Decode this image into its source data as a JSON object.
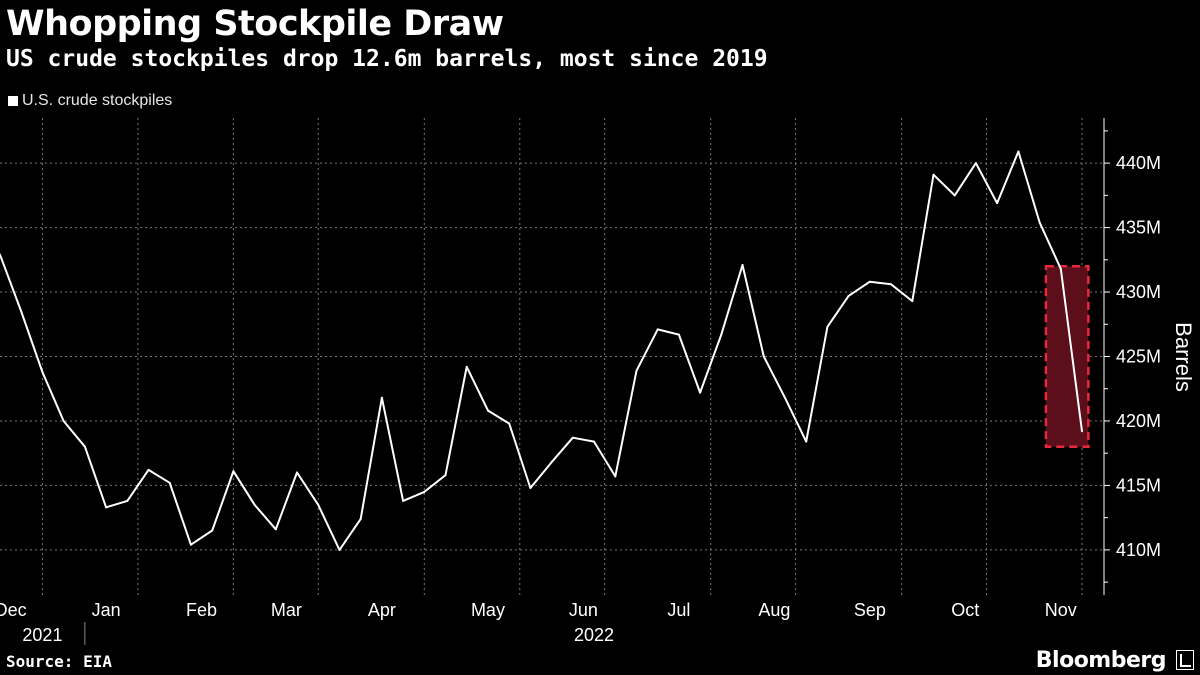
{
  "header": {
    "title": "Whopping Stockpile Draw",
    "subtitle": "US crude stockpiles drop 12.6m barrels, most since 2019"
  },
  "legend": {
    "label": "U.S. crude stockpiles"
  },
  "footer": {
    "source": "Source: EIA",
    "brand": "Bloomberg"
  },
  "colors": {
    "background": "#000000",
    "line": "#ffffff",
    "highlight_fill": "#5c0e1a",
    "highlight_border": "#e8283c",
    "grid": "#777777"
  },
  "chart_data": {
    "type": "line",
    "title": "Whopping Stockpile Draw",
    "subtitle": "US crude stockpiles drop 12.6m barrels, most since 2019",
    "ylabel": "Barrels",
    "ylim": [
      406.5,
      443.5
    ],
    "y_ticks": [
      410,
      415,
      420,
      425,
      430,
      435,
      440
    ],
    "y_tick_labels": [
      "410M",
      "415M",
      "420M",
      "425M",
      "430M",
      "435M",
      "440M"
    ],
    "x_ticks": [
      "Dec",
      "Jan",
      "Feb",
      "Mar",
      "Apr",
      "May",
      "Jun",
      "Jul",
      "Aug",
      "Sep",
      "Oct",
      "Nov"
    ],
    "x_tick_positions": [
      0.5,
      5,
      9.5,
      13.5,
      18,
      23,
      27.5,
      32,
      36.5,
      41,
      45.5,
      50
    ],
    "x_grid_positions": [
      2,
      6.5,
      11,
      15,
      20,
      24.5,
      28.5,
      33.5,
      37.5,
      42.5,
      46.5,
      51
    ],
    "year_labels": [
      {
        "text": "2021",
        "pos": 2
      },
      {
        "text": "2022",
        "pos": 28
      }
    ],
    "year_divider_pos": 4,
    "grid": true,
    "series": [
      {
        "name": "U.S. crude stockpiles",
        "values": [
          432.9,
          428.5,
          423.8,
          420.0,
          418.0,
          413.3,
          413.8,
          416.2,
          415.2,
          410.4,
          411.5,
          416.1,
          413.5,
          411.6,
          416.0,
          413.5,
          410.0,
          412.4,
          421.8,
          413.8,
          414.5,
          415.8,
          424.2,
          420.8,
          419.8,
          414.8,
          416.8,
          418.7,
          418.4,
          415.7,
          423.9,
          427.1,
          426.7,
          422.2,
          426.7,
          432.1,
          425.0,
          421.8,
          418.4,
          427.3,
          429.7,
          430.8,
          430.6,
          429.3,
          439.1,
          437.5,
          440.0,
          436.9,
          440.9,
          435.4,
          431.8,
          419.2
        ]
      }
    ],
    "highlight": {
      "x_range": [
        49.3,
        51.3
      ],
      "y_range": [
        418.0,
        432.0
      ]
    }
  }
}
